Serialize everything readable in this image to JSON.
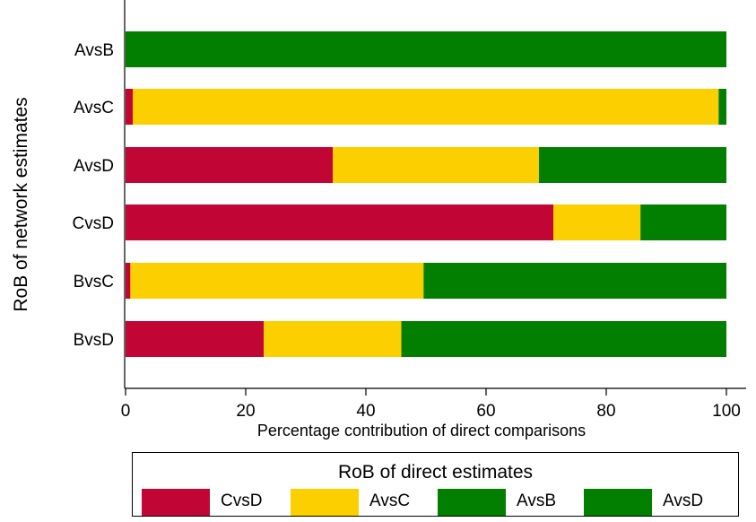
{
  "chart_data": {
    "type": "bar",
    "orientation": "horizontal",
    "stacked": true,
    "categories": [
      "AvsB",
      "AvsC",
      "AvsD",
      "CvsD",
      "BvsC",
      "BvsD"
    ],
    "series": [
      {
        "name": "CvsD",
        "color": "#c10534",
        "values": [
          0,
          1.2,
          34.5,
          71.2,
          0.8,
          23.0
        ]
      },
      {
        "name": "AvsC",
        "color": "#fccf00",
        "values": [
          0,
          97.5,
          34.3,
          14.5,
          48.8,
          22.9
        ]
      },
      {
        "name": "AvsB",
        "color": "#037f00",
        "values": [
          100,
          1.3,
          0,
          14.3,
          50.4,
          54.1
        ]
      },
      {
        "name": "AvsD",
        "color": "#037f00",
        "values": [
          0,
          0,
          31.2,
          0,
          0,
          0
        ]
      }
    ],
    "xlabel": "Percentage contribution of direct comparisons",
    "ylabel": "RoB of network estimates",
    "xlim": [
      0,
      100
    ],
    "xticks": [
      "0",
      "20",
      "40",
      "60",
      "80",
      "100"
    ],
    "grid": false,
    "legend": {
      "title": "RoB of direct estimates",
      "position": "bottom"
    }
  }
}
